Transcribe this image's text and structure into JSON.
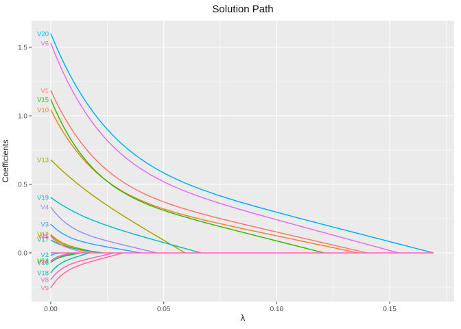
{
  "title": "Solution Path",
  "chart_data": {
    "type": "line",
    "title": "Solution Path",
    "xlabel": "λ",
    "ylabel": "Coefficients",
    "xlim": [
      -0.0085,
      0.1785
    ],
    "ylim": [
      -0.355,
      1.695
    ],
    "lambda_max": 0.1694,
    "panel_bg": "#EBEBEB",
    "grid_color": "#FFFFFF",
    "tick_color": "#333333",
    "tick_label_color": "#4D4D4D",
    "zero_line_color": "#FF62BC",
    "legend": "none (direct labels at lambda = 0)",
    "x_ticks": [
      {
        "value": 0.0,
        "label": "0.00"
      },
      {
        "value": 0.05,
        "label": "0.05"
      },
      {
        "value": 0.1,
        "label": "0.10"
      },
      {
        "value": 0.15,
        "label": "0.15"
      }
    ],
    "y_ticks": [
      {
        "value": 0.0,
        "label": "0.0"
      },
      {
        "value": 0.5,
        "label": "0.5"
      },
      {
        "value": 1.0,
        "label": "1.0"
      },
      {
        "value": 1.5,
        "label": "1.5"
      }
    ],
    "x_minor": [
      0.025,
      0.075,
      0.125,
      0.175
    ],
    "y_minor": [
      -0.25,
      0.25,
      0.75,
      1.25
    ],
    "series": [
      {
        "name": "V1",
        "color": "#F8766D",
        "coef_at_lambda0": 1.185,
        "zero_lambda": 0.14,
        "label_c": 1.185,
        "w": 0.55,
        "q": 7
      },
      {
        "name": "V10",
        "color": "#EA8331",
        "coef_at_lambda0": 1.045,
        "zero_lambda": 0.136,
        "label_c": 1.045,
        "w": 0.55,
        "q": 7
      },
      {
        "name": "V11",
        "color": "#D89000",
        "coef_at_lambda0": 0.13,
        "zero_lambda": 0.018,
        "label_c": 0.128,
        "w": 0.4,
        "q": 5
      },
      {
        "name": "V12",
        "color": "#C09B00",
        "coef_at_lambda0": 0.135,
        "zero_lambda": 0.021,
        "label_c": 0.138,
        "w": 0.4,
        "q": 5
      },
      {
        "name": "V13",
        "color": "#A3A500",
        "coef_at_lambda0": 0.68,
        "zero_lambda": 0.0595,
        "label_c": 0.68,
        "w": 0.15,
        "q": 4
      },
      {
        "name": "V14",
        "color": "#7CAE00",
        "coef_at_lambda0": -0.058,
        "zero_lambda": 0.011,
        "label_c": -0.056,
        "w": 0.4,
        "q": 5
      },
      {
        "name": "V15",
        "color": "#39B600",
        "coef_at_lambda0": 1.12,
        "zero_lambda": 0.121,
        "label_c": 1.12,
        "w": 0.55,
        "q": 7
      },
      {
        "name": "V16",
        "color": "#00BB4E",
        "coef_at_lambda0": -0.07,
        "zero_lambda": 0.013,
        "label_c": -0.068,
        "w": 0.4,
        "q": 5
      },
      {
        "name": "V17",
        "color": "#00BF7D",
        "coef_at_lambda0": 0.095,
        "zero_lambda": 0.023,
        "label_c": 0.1,
        "w": 0.4,
        "q": 5
      },
      {
        "name": "V18",
        "color": "#00C1A3",
        "coef_at_lambda0": -0.145,
        "zero_lambda": 0.017,
        "label_c": -0.145,
        "w": 0.4,
        "q": 5
      },
      {
        "name": "V19",
        "color": "#00BFC4",
        "coef_at_lambda0": 0.405,
        "zero_lambda": 0.0665,
        "label_c": 0.405,
        "w": 0.25,
        "q": 5
      },
      {
        "name": "V2",
        "color": "#00BAE0",
        "coef_at_lambda0": -0.02,
        "zero_lambda": 0.004,
        "label_c": -0.012,
        "w": 0.4,
        "q": 5
      },
      {
        "name": "V20",
        "color": "#00B0F6",
        "coef_at_lambda0": 1.6,
        "zero_lambda": 0.1694,
        "label_c": 1.6,
        "w": 0.55,
        "q": 7
      },
      {
        "name": "V3",
        "color": "#35A2FF",
        "coef_at_lambda0": 0.21,
        "zero_lambda": 0.04,
        "label_c": 0.21,
        "w": 0.45,
        "q": 6
      },
      {
        "name": "V4",
        "color": "#9590FF",
        "coef_at_lambda0": 0.335,
        "zero_lambda": 0.047,
        "label_c": 0.335,
        "w": 0.45,
        "q": 6
      },
      {
        "name": "V5",
        "color": "#C77CFF",
        "coef_at_lambda0": 0.122,
        "zero_lambda": 0.015,
        "label_c": 0.12,
        "w": 0.4,
        "q": 5
      },
      {
        "name": "V6",
        "color": "#E76BF3",
        "coef_at_lambda0": 1.53,
        "zero_lambda": 0.154,
        "label_c": 1.53,
        "w": 0.55,
        "q": 7
      },
      {
        "name": "V7",
        "color": "#FA62DB",
        "coef_at_lambda0": -0.062,
        "zero_lambda": 0.009,
        "label_c": -0.062,
        "w": 0.4,
        "q": 5
      },
      {
        "name": "V8",
        "color": "#FF62BC",
        "coef_at_lambda0": -0.195,
        "zero_lambda": 0.028,
        "label_c": -0.195,
        "w": 0.45,
        "q": 6
      },
      {
        "name": "V9",
        "color": "#FF6A98",
        "coef_at_lambda0": -0.255,
        "zero_lambda": 0.032,
        "label_c": -0.255,
        "w": 0.45,
        "q": 6
      }
    ]
  }
}
